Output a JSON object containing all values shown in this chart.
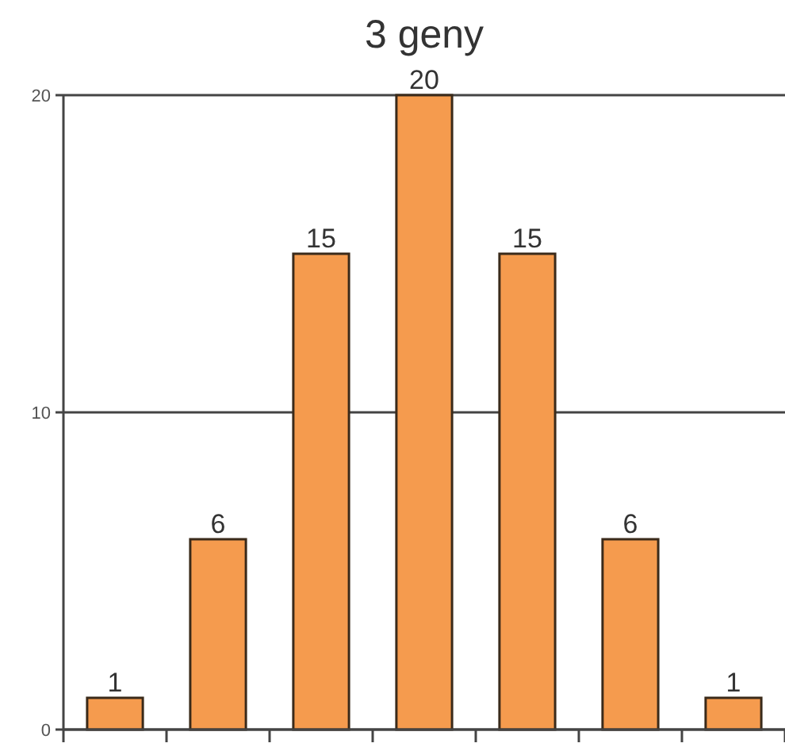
{
  "chart_data": {
    "type": "bar",
    "title": "3 geny",
    "categories": [
      null,
      null,
      null,
      null,
      null,
      null,
      null
    ],
    "values": [
      1,
      6,
      15,
      20,
      15,
      6,
      1
    ],
    "color": "#f59b4e",
    "ylim": [
      0,
      20
    ],
    "yticks": [
      0,
      10,
      20
    ],
    "grid": "y",
    "data_labels": true,
    "tick_labels": "y"
  }
}
